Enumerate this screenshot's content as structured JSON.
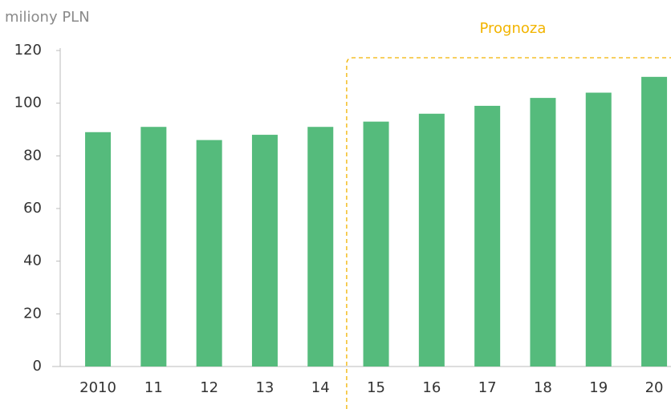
{
  "chart_data": {
    "type": "bar",
    "y_label": "miliony PLN",
    "annotation": "Prognoza",
    "categories": [
      "2010",
      "11",
      "12",
      "13",
      "14",
      "15",
      "16",
      "17",
      "18",
      "19",
      "20"
    ],
    "values": [
      89,
      91,
      86,
      88,
      91,
      93,
      96,
      99,
      102,
      104,
      110
    ],
    "color": "#55bb7c",
    "ylim": [
      0,
      120
    ],
    "yticks": [
      0,
      20,
      40,
      60,
      80,
      100,
      120
    ],
    "grid": false
  }
}
